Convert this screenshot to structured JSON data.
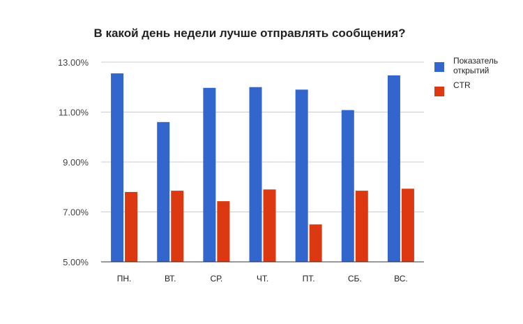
{
  "chart_data": {
    "type": "bar",
    "title": "В какой день недели лучше отправлять сообщения?",
    "xlabel": "",
    "ylabel": "",
    "categories": [
      "ПН.",
      "ВТ.",
      "СР.",
      "ЧТ.",
      "ПТ.",
      "СБ.",
      "ВС."
    ],
    "series": [
      {
        "name": [
          "Показатель",
          "открытий"
        ],
        "color": "#3366cc",
        "values": [
          12.55,
          10.6,
          11.97,
          12.0,
          11.9,
          11.08,
          12.47
        ]
      },
      {
        "name": [
          "CTR"
        ],
        "color": "#dc3912",
        "values": [
          7.8,
          7.85,
          7.43,
          7.9,
          6.5,
          7.85,
          7.93
        ]
      }
    ],
    "ylim": [
      5,
      13
    ],
    "yticks": [
      5,
      7,
      9,
      11,
      13
    ],
    "ytick_labels": [
      "5.00%",
      "7.00%",
      "9.00%",
      "11.00%",
      "13.00%"
    ],
    "grid": true,
    "legend_position": "right"
  }
}
